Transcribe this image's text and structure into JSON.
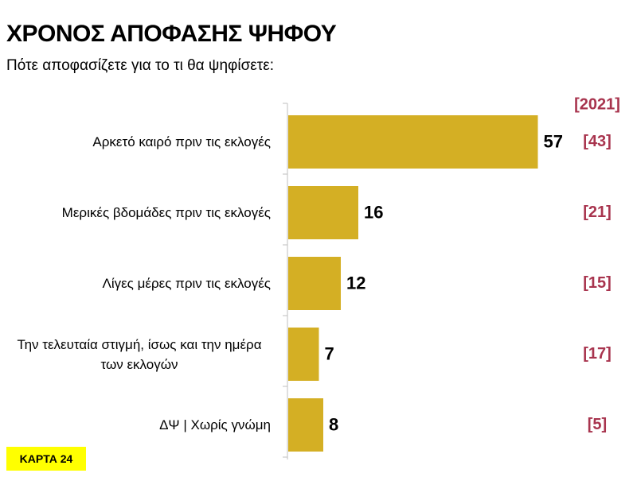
{
  "chart_data": {
    "type": "bar",
    "orientation": "horizontal",
    "title": "ΧΡΟΝΟΣ ΑΠΟΦΑΣΗΣ ΨΗΦΟΥ",
    "subtitle": "Πότε αποφασίζετε για το τι θα ψηφίσετε:",
    "categories": [
      "Αρκετό καιρό πριν τις εκλογές",
      "Μερικές βδομάδες πριν τις εκλογές",
      "Λίγες μέρες πριν τις εκλογές",
      "Την τελευταία στιγμή, ίσως και την ημέρα των εκλογών",
      "ΔΨ | Χωρίς γνώμη"
    ],
    "values": [
      57,
      16,
      12,
      7,
      8
    ],
    "color": "#d4af24",
    "comparison_title": "[2021]",
    "comparison_labels": [
      "[43]",
      "[21]",
      "[15]",
      "[17]",
      "[5]"
    ],
    "comparison_color": "#a8344e",
    "badge": "ΚΑΡΤΑ 24"
  }
}
